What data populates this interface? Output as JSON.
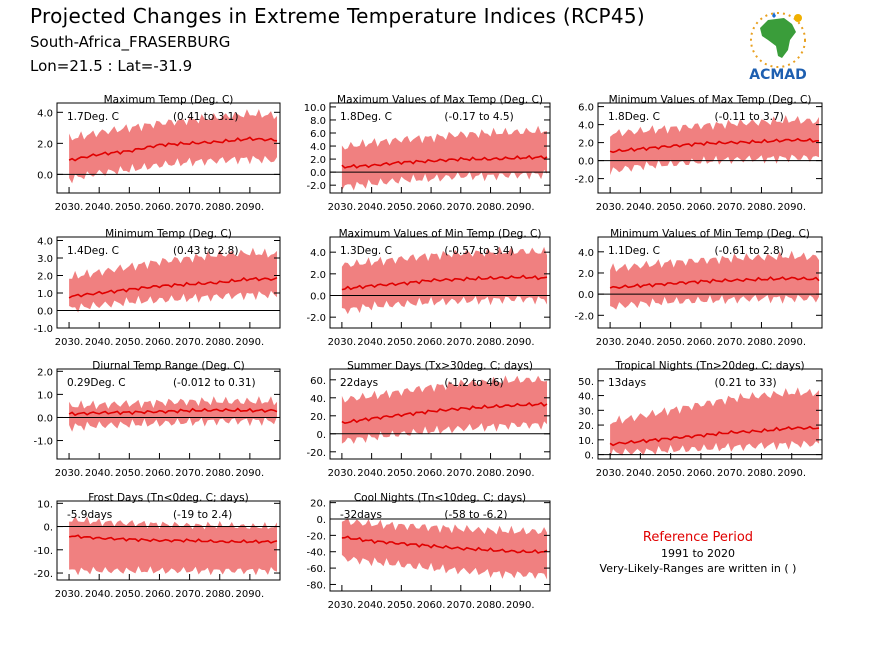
{
  "header": {
    "title": "Projected Changes in Extreme Temperature Indices (RCP45)",
    "station": "South-Africa_FRASERBURG",
    "coords": "Lon=21.5 : Lat=-31.9"
  },
  "logo": {
    "text": "ACMAD",
    "icon": "africa-map-logo"
  },
  "reference": {
    "title": "Reference Period",
    "years": "1991 to 2020",
    "note": "Very-Likely-Ranges are written in ( )"
  },
  "colors": {
    "band": "#f08080",
    "line": "#e00000",
    "zero": "#000000"
  },
  "x_ticks": [
    "2030.",
    "2040.",
    "2050.",
    "2060.",
    "2070.",
    "2080.",
    "2090."
  ],
  "chart_data": [
    {
      "type": "area",
      "title": "Maximum Temp (Deg. C)",
      "change": "1.7Deg. C",
      "range": "(0.41 to 3.1)",
      "xlim": [
        2026,
        2100
      ],
      "ylim": [
        -1.2,
        4.6
      ],
      "yticks": [
        "4.0",
        "2.0",
        "0.0"
      ],
      "series": [
        {
          "x": [
            2030,
            2040,
            2050,
            2060,
            2070,
            2080,
            2090,
            2099
          ],
          "median": [
            0.9,
            1.3,
            1.5,
            1.9,
            2.0,
            2.1,
            2.3,
            2.2
          ],
          "low": [
            -0.3,
            0.1,
            0.3,
            0.6,
            0.8,
            0.9,
            1.0,
            0.9
          ],
          "high": [
            2.3,
            2.7,
            3.0,
            3.3,
            3.5,
            3.7,
            3.9,
            3.8
          ]
        }
      ]
    },
    {
      "type": "area",
      "title": "Maximum Values of Max Temp (Deg. C)",
      "change": "1.8Deg. C",
      "range": "(-0.17 to 4.5)",
      "xlim": [
        2026,
        2100
      ],
      "ylim": [
        -3.2,
        10.6
      ],
      "yticks": [
        "10.0",
        "8.0",
        "6.0",
        "4.0",
        "2.0",
        "0.0",
        "-2.0"
      ],
      "series": [
        {
          "x": [
            2030,
            2040,
            2050,
            2060,
            2070,
            2080,
            2090,
            2099
          ],
          "median": [
            0.8,
            1.0,
            1.5,
            1.7,
            2.0,
            2.0,
            2.2,
            2.3
          ],
          "low": [
            -2.2,
            -1.8,
            -1.2,
            -1.0,
            -0.6,
            -0.6,
            -0.4,
            -0.3
          ],
          "high": [
            3.8,
            4.5,
            5.0,
            5.3,
            5.8,
            6.0,
            6.2,
            6.4
          ]
        }
      ]
    },
    {
      "type": "area",
      "title": "Minimum Values of Max Temp (Deg. C)",
      "change": "1.8Deg. C",
      "range": "(-0.11 to 3.7)",
      "xlim": [
        2026,
        2100
      ],
      "ylim": [
        -3.6,
        6.4
      ],
      "yticks": [
        "6.0",
        "4.0",
        "2.0",
        "0.0",
        "-2.0"
      ],
      "series": [
        {
          "x": [
            2030,
            2040,
            2050,
            2060,
            2070,
            2080,
            2090,
            2099
          ],
          "median": [
            1.0,
            1.3,
            1.6,
            1.9,
            2.0,
            2.1,
            2.3,
            2.2
          ],
          "low": [
            -1.2,
            -0.6,
            -0.4,
            -0.1,
            0.1,
            0.2,
            0.3,
            0.3
          ],
          "high": [
            3.0,
            3.3,
            3.6,
            3.9,
            4.1,
            4.3,
            4.5,
            4.4
          ]
        }
      ]
    },
    {
      "type": "area",
      "title": "Minimum Temp (Deg. C)",
      "change": "1.4Deg. C",
      "range": "(0.43 to 2.8)",
      "xlim": [
        2026,
        2100
      ],
      "ylim": [
        -1.0,
        4.2
      ],
      "yticks": [
        "4.0",
        "3.0",
        "2.0",
        "1.0",
        "0.0",
        "-1.0"
      ],
      "series": [
        {
          "x": [
            2030,
            2040,
            2050,
            2060,
            2070,
            2080,
            2090,
            2099
          ],
          "median": [
            0.8,
            1.0,
            1.2,
            1.4,
            1.5,
            1.6,
            1.8,
            1.8
          ],
          "low": [
            0.1,
            0.3,
            0.5,
            0.6,
            0.7,
            0.8,
            0.9,
            0.9
          ],
          "high": [
            1.9,
            2.2,
            2.5,
            2.8,
            3.0,
            3.2,
            3.3,
            3.2
          ]
        }
      ]
    },
    {
      "type": "area",
      "title": "Maximum Values of Min Temp (Deg. C)",
      "change": "1.3Deg. C",
      "range": "(-0.57 to 3.4)",
      "xlim": [
        2026,
        2100
      ],
      "ylim": [
        -3.0,
        5.4
      ],
      "yticks": [
        "4.0",
        "2.0",
        "0.0",
        "-2.0"
      ],
      "series": [
        {
          "x": [
            2030,
            2040,
            2050,
            2060,
            2070,
            2080,
            2090,
            2099
          ],
          "median": [
            0.6,
            0.9,
            1.1,
            1.4,
            1.5,
            1.6,
            1.7,
            1.6
          ],
          "low": [
            -1.4,
            -1.0,
            -0.8,
            -0.6,
            -0.5,
            -0.4,
            -0.3,
            -0.4
          ],
          "high": [
            2.8,
            3.1,
            3.4,
            3.7,
            3.9,
            4.0,
            4.1,
            4.0
          ]
        }
      ]
    },
    {
      "type": "area",
      "title": "Minimum Values of Min Temp (Deg. C)",
      "change": "1.1Deg. C",
      "range": "(-0.61 to 2.8)",
      "xlim": [
        2026,
        2100
      ],
      "ylim": [
        -3.2,
        5.4
      ],
      "yticks": [
        "4.0",
        "2.0",
        "0.0",
        "-2.0"
      ],
      "series": [
        {
          "x": [
            2030,
            2040,
            2050,
            2060,
            2070,
            2080,
            2090,
            2099
          ],
          "median": [
            0.6,
            0.8,
            1.0,
            1.2,
            1.3,
            1.4,
            1.5,
            1.4
          ],
          "low": [
            -1.2,
            -0.9,
            -0.7,
            -0.6,
            -0.5,
            -0.4,
            -0.4,
            -0.4
          ],
          "high": [
            2.4,
            2.7,
            3.0,
            3.2,
            3.4,
            3.5,
            3.6,
            3.5
          ]
        }
      ]
    },
    {
      "type": "area",
      "title": "Diurnal Temp Range (Deg. C)",
      "change": "0.29Deg. C",
      "range": "(-0.012 to 0.31)",
      "xlim": [
        2026,
        2100
      ],
      "ylim": [
        -1.8,
        2.1
      ],
      "yticks": [
        "2.0",
        "1.0",
        "0.0",
        "-1.0"
      ],
      "series": [
        {
          "x": [
            2030,
            2040,
            2050,
            2060,
            2070,
            2080,
            2090,
            2099
          ],
          "median": [
            0.15,
            0.2,
            0.22,
            0.25,
            0.3,
            0.32,
            0.3,
            0.3
          ],
          "low": [
            -0.4,
            -0.35,
            -0.3,
            -0.25,
            -0.2,
            -0.15,
            -0.15,
            -0.15
          ],
          "high": [
            0.5,
            0.55,
            0.6,
            0.65,
            0.7,
            0.7,
            0.7,
            0.7
          ]
        }
      ]
    },
    {
      "type": "area",
      "title": "Summer Days (Tx>30deg. C; days)",
      "change": "22days",
      "range": "(-1.2 to 46)",
      "xlim": [
        2026,
        2100
      ],
      "ylim": [
        -28,
        72
      ],
      "yticks": [
        "60.",
        "40.",
        "20.",
        "0.",
        "-20."
      ],
      "series": [
        {
          "x": [
            2030,
            2040,
            2050,
            2060,
            2070,
            2080,
            2090,
            2099
          ],
          "median": [
            12,
            17,
            21,
            25,
            28,
            30,
            32,
            33
          ],
          "low": [
            -8,
            -4,
            0,
            3,
            6,
            8,
            10,
            10
          ],
          "high": [
            38,
            42,
            47,
            52,
            56,
            58,
            60,
            60
          ]
        }
      ]
    },
    {
      "type": "area",
      "title": "Tropical Nights (Tn>20deg. C; days)",
      "change": "13days",
      "range": "(0.21 to 33)",
      "xlim": [
        2026,
        2100
      ],
      "ylim": [
        -3,
        58
      ],
      "yticks": [
        "50.",
        "40.",
        "30.",
        "20.",
        "10.",
        "0."
      ],
      "series": [
        {
          "x": [
            2030,
            2040,
            2050,
            2060,
            2070,
            2080,
            2090,
            2099
          ],
          "median": [
            7,
            9,
            11,
            13,
            15,
            16,
            18,
            18
          ],
          "low": [
            1,
            2,
            3,
            4,
            5,
            6,
            7,
            7
          ],
          "high": [
            22,
            26,
            30,
            34,
            38,
            40,
            42,
            42
          ]
        }
      ]
    },
    {
      "type": "area",
      "title": "Frost Days (Tn<0deg. C; days)",
      "change": "-5.9days",
      "range": "(-19 to 2.4)",
      "xlim": [
        2026,
        2100
      ],
      "ylim": [
        -23,
        11
      ],
      "yticks": [
        "10.",
        "0.",
        "-10.",
        "-20."
      ],
      "series": [
        {
          "x": [
            2030,
            2040,
            2050,
            2060,
            2070,
            2080,
            2090,
            2099
          ],
          "median": [
            -4,
            -5,
            -5.5,
            -6,
            -6,
            -6.5,
            -6.5,
            -6.5
          ],
          "low": [
            -19,
            -19,
            -19,
            -19,
            -19,
            -19,
            -19,
            -19
          ],
          "high": [
            3,
            2,
            1.5,
            1,
            0.5,
            0.5,
            0,
            0
          ]
        }
      ]
    },
    {
      "type": "area",
      "title": "Cool Nights (Tn<10deg. C; days)",
      "change": "-32days",
      "range": "(-58 to -6.2)",
      "xlim": [
        2026,
        2100
      ],
      "ylim": [
        -88,
        22
      ],
      "yticks": [
        "20.",
        "0.",
        "-20.",
        "-40.",
        "-60.",
        "-80."
      ],
      "series": [
        {
          "x": [
            2030,
            2040,
            2050,
            2060,
            2070,
            2080,
            2090,
            2099
          ],
          "median": [
            -22,
            -27,
            -30,
            -33,
            -36,
            -38,
            -40,
            -40
          ],
          "low": [
            -48,
            -52,
            -56,
            -60,
            -63,
            -66,
            -68,
            -68
          ],
          "high": [
            -2,
            -6,
            -8,
            -10,
            -12,
            -14,
            -15,
            -15
          ]
        }
      ]
    }
  ]
}
